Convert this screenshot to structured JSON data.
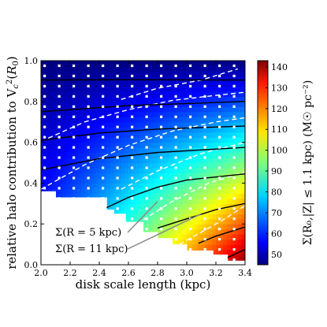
{
  "chart_data": {
    "type": "heatmap",
    "xlabel": "disk scale length (kpc)",
    "ylabel_html": "relative halo contribution to V<tspan font-style='italic'>c</tspan>",
    "ylabel": "relative halo contribution to Vc²(R0)",
    "xlim": [
      2.0,
      3.4
    ],
    "ylim": [
      0.0,
      1.0
    ],
    "x_ticks": [
      2.0,
      2.2,
      2.4,
      2.6,
      2.8,
      3.0,
      3.2,
      3.4
    ],
    "x_tick_labels": [
      "2.0",
      "2.2",
      "2.4",
      "2.6",
      "2.8",
      "3.0",
      "3.2",
      "3.4"
    ],
    "y_ticks": [
      0.0,
      0.2,
      0.4,
      0.6,
      0.8,
      1.0
    ],
    "y_tick_labels": [
      "0.0",
      "0.2",
      "0.4",
      "0.6",
      "0.8",
      "1.0"
    ],
    "colorbar": {
      "label": "Σ(R₀,|Z| ≤ 1.1 kpc) (M☉ pc⁻²)",
      "min": 45,
      "max": 143,
      "ticks": [
        50,
        60,
        70,
        80,
        90,
        100,
        110,
        120,
        130,
        140
      ],
      "tick_labels": [
        "50",
        "60",
        "70",
        "80",
        "90",
        "100",
        "110",
        "120",
        "130",
        "140"
      ],
      "colormap": "jet"
    },
    "masked_region": {
      "description": "white (no data) staircase in lower-right/bottom",
      "steps": [
        {
          "x": [
            2.0,
            2.1
          ],
          "y_max": 0.36
        },
        {
          "x": [
            2.1,
            2.45
          ],
          "y_max": 0.33
        },
        {
          "x": [
            2.45,
            2.5
          ],
          "y_max": 0.27
        },
        {
          "x": [
            2.5,
            2.58
          ],
          "y_max": 0.25
        },
        {
          "x": [
            2.58,
            2.7
          ],
          "y_max": 0.21
        },
        {
          "x": [
            2.7,
            2.8
          ],
          "y_max": 0.16
        },
        {
          "x": [
            2.8,
            2.9
          ],
          "y_max": 0.13
        },
        {
          "x": [
            2.9,
            3.0
          ],
          "y_max": 0.1
        },
        {
          "x": [
            3.0,
            3.18
          ],
          "y_max": 0.07
        },
        {
          "x": [
            3.18,
            3.28
          ],
          "y_max": 0.05
        },
        {
          "x": [
            3.28,
            3.4
          ],
          "y_max": 0.02
        }
      ]
    },
    "contours_R5": {
      "label": "Σ(R = 5 kpc)",
      "style": "solid black",
      "lines": [
        {
          "y_at_x": [
            [
              2.0,
              0.905
            ],
            [
              2.6,
              0.907
            ],
            [
              3.4,
              0.905
            ]
          ]
        },
        {
          "y_at_x": [
            [
              2.0,
              0.75
            ],
            [
              2.6,
              0.78
            ],
            [
              3.4,
              0.8
            ]
          ]
        },
        {
          "y_at_x": [
            [
              2.0,
              0.61
            ],
            [
              2.4,
              0.645
            ],
            [
              2.8,
              0.665
            ],
            [
              3.4,
              0.68
            ]
          ]
        },
        {
          "y_at_x": [
            [
              2.0,
              0.465
            ],
            [
              2.4,
              0.52
            ],
            [
              2.8,
              0.55
            ],
            [
              3.4,
              0.575
            ]
          ]
        },
        {
          "y_at_x": [
            [
              2.45,
              0.28
            ],
            [
              2.6,
              0.33
            ],
            [
              2.8,
              0.38
            ],
            [
              3.0,
              0.415
            ],
            [
              3.4,
              0.445
            ]
          ]
        },
        {
          "y_at_x": [
            [
              2.8,
              0.18
            ],
            [
              3.0,
              0.225
            ],
            [
              3.2,
              0.27
            ],
            [
              3.4,
              0.3
            ]
          ]
        },
        {
          "y_at_x": [
            [
              3.08,
              0.105
            ],
            [
              3.2,
              0.14
            ],
            [
              3.4,
              0.185
            ]
          ]
        },
        {
          "y_at_x": [
            [
              3.28,
              0.035
            ],
            [
              3.34,
              0.055
            ],
            [
              3.4,
              0.075
            ]
          ]
        }
      ]
    },
    "contours_R11": {
      "label": "Σ(R = 11 kpc)",
      "style": "dashed white",
      "lines": [
        {
          "y_at_x": [
            [
              2.55,
              0.81
            ],
            [
              2.8,
              0.865
            ],
            [
              3.1,
              0.905
            ],
            [
              3.35,
              0.96
            ]
          ]
        },
        {
          "y_at_x": [
            [
              2.05,
              0.62
            ],
            [
              2.3,
              0.7
            ],
            [
              2.6,
              0.76
            ],
            [
              2.9,
              0.805
            ],
            [
              3.2,
              0.83
            ],
            [
              3.4,
              0.845
            ]
          ]
        },
        {
          "y_at_x": [
            [
              2.0,
              0.37
            ],
            [
              2.3,
              0.49
            ],
            [
              2.6,
              0.585
            ],
            [
              2.9,
              0.655
            ],
            [
              3.2,
              0.7
            ],
            [
              3.4,
              0.72
            ]
          ]
        },
        {
          "y_at_x": [
            [
              2.55,
              0.37
            ],
            [
              2.8,
              0.46
            ],
            [
              3.1,
              0.545
            ],
            [
              3.4,
              0.6
            ]
          ]
        },
        {
          "y_at_x": [
            [
              2.7,
              0.22
            ],
            [
              2.9,
              0.31
            ],
            [
              3.15,
              0.4
            ],
            [
              3.4,
              0.455
            ]
          ]
        },
        {
          "y_at_x": [
            [
              2.95,
              0.1
            ],
            [
              3.1,
              0.16
            ],
            [
              3.25,
              0.22
            ],
            [
              3.4,
              0.29
            ]
          ]
        }
      ]
    },
    "grid_markers": {
      "color": "white",
      "x": [
        2.025,
        2.125,
        2.225,
        2.325,
        2.425,
        2.525,
        2.625,
        2.725,
        2.825,
        2.925,
        3.025,
        3.125,
        3.225,
        3.325
      ],
      "y": [
        0.025,
        0.075,
        0.125,
        0.175,
        0.225,
        0.275,
        0.325,
        0.375,
        0.425,
        0.475,
        0.525,
        0.575,
        0.625,
        0.675,
        0.725,
        0.775,
        0.825,
        0.875,
        0.925,
        0.975
      ]
    },
    "annotations": [
      {
        "text": "Σ(R = 5 kpc)",
        "arrow_to": {
          "x": 2.8,
          "y": 0.31
        }
      },
      {
        "text": "Σ(R = 11 kpc)",
        "arrow_to": {
          "x": 3.1,
          "y": 0.25
        }
      }
    ]
  }
}
